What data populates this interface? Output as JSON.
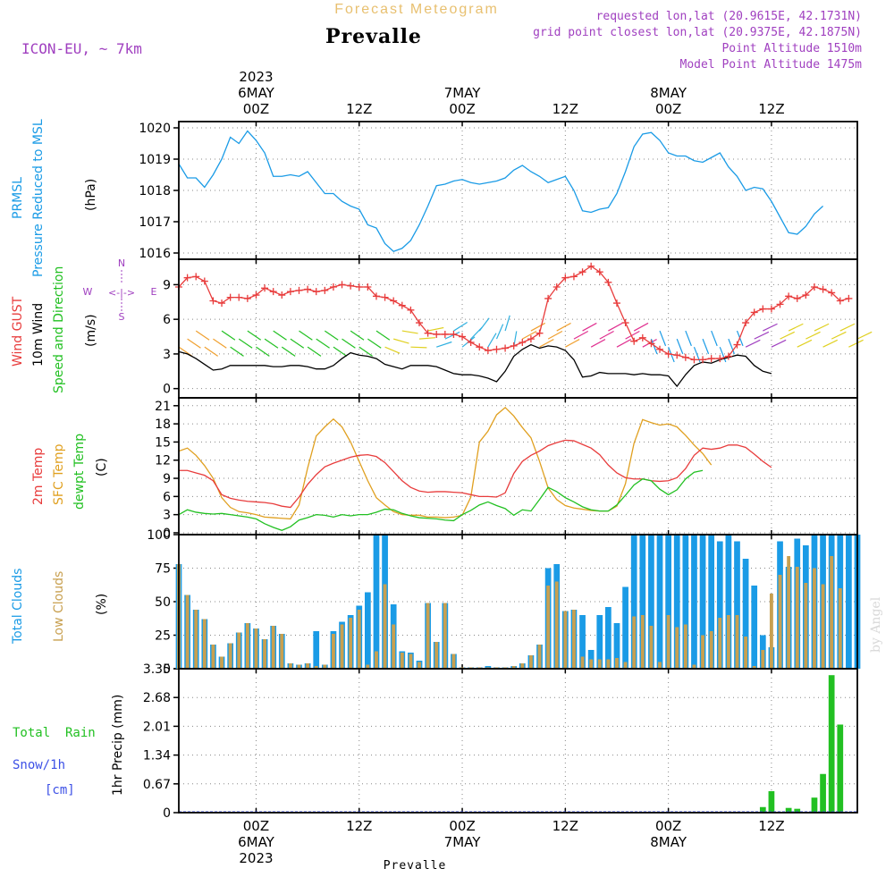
{
  "header": {
    "product": "Forecast Meteogram",
    "location": "Prevalle",
    "model": "ICON-EU, ~ 7km",
    "requested": "requested lon,lat (20.9615E, 42.1731N)",
    "grid_point": "grid point closest lon,lat (20.9375E, 42.1875N)",
    "point_altitude": "Point Altitude 1510m",
    "model_altitude": "Model Point Altitude 1475m"
  },
  "top_axis": {
    "labels": [
      {
        "lines": [
          "2023",
          "6MAY",
          "00Z"
        ],
        "hour": 24
      },
      {
        "lines": [
          "12Z"
        ],
        "hour": 36
      },
      {
        "lines": [
          "7MAY",
          "00Z"
        ],
        "hour": 48
      },
      {
        "lines": [
          "12Z"
        ],
        "hour": 60
      },
      {
        "lines": [
          "8MAY",
          "00Z"
        ],
        "hour": 72
      },
      {
        "lines": [
          "12Z"
        ],
        "hour": 84
      }
    ]
  },
  "bottom_axis": {
    "labels": [
      {
        "lines": [
          "00Z",
          "6MAY",
          "2023"
        ],
        "hour": 24
      },
      {
        "lines": [
          "12Z"
        ],
        "hour": 36
      },
      {
        "lines": [
          "00Z",
          "7MAY"
        ],
        "hour": 48
      },
      {
        "lines": [
          "12Z"
        ],
        "hour": 60
      },
      {
        "lines": [
          "00Z",
          "8MAY"
        ],
        "hour": 72
      },
      {
        "lines": [
          "12Z"
        ],
        "hour": 84
      }
    ],
    "footer": "Prevalle"
  },
  "watermark": "by Angel",
  "colors": {
    "pressure": "#1a9be6",
    "gust": "#e83c3c",
    "wind": "#000000",
    "temp": "#e83c3c",
    "sfc": "#e0a020",
    "dewpt": "#22c022",
    "total_clouds": "#1a9be6",
    "low_clouds": "#c8a050",
    "rain": "#22c022",
    "snow": "#3c50e6",
    "legend_wind_dir": "#a040c0",
    "header_meta": "#a040c0",
    "header_product": "#e8c070"
  },
  "panel_labels": {
    "pressure": {
      "var": "PRMSL",
      "desc": "Pressure Reduced to MSL",
      "unit": "(hPa)"
    },
    "wind": {
      "gust": "Wind GUST",
      "wind": "10m Wind",
      "dir": "Speed and Direction",
      "unit": "(m/s)",
      "compass": {
        "n": "N",
        "s": "S",
        "w": "W",
        "e": "E",
        "arrows": "<-|->"
      }
    },
    "temp": {
      "t2m": "2m Temp",
      "sfc": "SFC Temp",
      "dew": "dewpt Temp",
      "unit": "(C)"
    },
    "clouds": {
      "total": "Total Clouds",
      "low": "Low Clouds",
      "unit": "(%)"
    },
    "precip": {
      "rain": "Total  Rain",
      "snow": "Snow/1h",
      "snow_unit": "[cm]",
      "unit": "1hr Precip (mm)"
    }
  },
  "chart_data": [
    {
      "type": "line",
      "title": "PRMSL Pressure Reduced to MSL",
      "ylabel": "(hPa)",
      "x_hours_start": 15,
      "x_hours_step": 1,
      "xlim": [
        15,
        94
      ],
      "ylim": [
        1015.8,
        1020.2
      ],
      "yticks": [
        1016,
        1017,
        1018,
        1019,
        1020
      ],
      "series": [
        {
          "name": "PRMSL",
          "values": [
            1018.85,
            1018.4,
            1018.4,
            1018.1,
            1018.5,
            1019.0,
            1019.7,
            1019.5,
            1019.9,
            1019.6,
            1019.2,
            1018.45,
            1018.45,
            1018.5,
            1018.45,
            1018.6,
            1018.25,
            1017.9,
            1017.9,
            1017.65,
            1017.5,
            1017.4,
            1016.9,
            1016.8,
            1016.3,
            1016.05,
            1016.15,
            1016.4,
            1016.9,
            1017.5,
            1018.15,
            1018.2,
            1018.3,
            1018.35,
            1018.25,
            1018.2,
            1018.25,
            1018.3,
            1018.4,
            1018.65,
            1018.8,
            1018.6,
            1018.45,
            1018.25,
            1018.35,
            1018.45,
            1018.0,
            1017.35,
            1017.3,
            1017.4,
            1017.45,
            1017.9,
            1018.6,
            1019.4,
            1019.8,
            1019.85,
            1019.6,
            1019.2,
            1019.1,
            1019.1,
            1018.95,
            1018.9,
            1019.05,
            1019.2,
            1018.75,
            1018.45,
            1018.0,
            1018.1,
            1018.05,
            1017.65,
            1017.15,
            1016.65,
            1016.6,
            1016.85,
            1017.25,
            1017.5
          ]
        }
      ]
    },
    {
      "type": "line",
      "title": "Wind GUST / 10m Wind Speed and Direction",
      "ylabel": "(m/s)",
      "x_hours_start": 15,
      "x_hours_step": 1,
      "xlim": [
        15,
        94
      ],
      "ylim": [
        -0.8,
        11.2
      ],
      "yticks": [
        0,
        3,
        6,
        9
      ],
      "series": [
        {
          "name": "Wind GUST",
          "values": [
            8.8,
            9.6,
            9.7,
            9.3,
            7.6,
            7.4,
            7.9,
            7.9,
            7.8,
            8.1,
            8.7,
            8.4,
            8.1,
            8.4,
            8.5,
            8.6,
            8.4,
            8.5,
            8.8,
            9.0,
            8.9,
            8.8,
            8.8,
            8.0,
            7.9,
            7.6,
            7.2,
            6.8,
            5.7,
            4.8,
            4.7,
            4.7,
            4.7,
            4.5,
            4.0,
            3.6,
            3.3,
            3.4,
            3.5,
            3.7,
            4.0,
            4.3,
            4.8,
            7.8,
            8.8,
            9.6,
            9.7,
            10.1,
            10.6,
            10.1,
            9.2,
            7.4,
            5.7,
            4.1,
            4.4,
            3.9,
            3.4,
            3.0,
            2.9,
            2.7,
            2.5,
            2.5,
            2.6,
            2.6,
            2.8,
            3.8,
            5.7,
            6.6,
            6.9,
            6.9,
            7.3,
            8.0,
            7.8,
            8.1,
            8.8,
            8.6,
            8.3,
            7.6,
            7.8
          ]
        },
        {
          "name": "10m Wind",
          "values": [
            3.2,
            3.0,
            2.6,
            2.1,
            1.6,
            1.7,
            2.0,
            2.0,
            2.0,
            2.0,
            2.0,
            1.9,
            1.9,
            2.0,
            2.0,
            1.9,
            1.7,
            1.7,
            2.0,
            2.6,
            3.1,
            2.9,
            2.8,
            2.6,
            2.1,
            1.9,
            1.7,
            2.0,
            2.0,
            2.0,
            1.9,
            1.6,
            1.3,
            1.2,
            1.2,
            1.1,
            0.9,
            0.6,
            1.5,
            2.8,
            3.4,
            3.8,
            3.5,
            3.7,
            3.6,
            3.3,
            2.5,
            1.0,
            1.1,
            1.4,
            1.3,
            1.3,
            1.3,
            1.2,
            1.3,
            1.2,
            1.2,
            1.1,
            0.2,
            1.2,
            2.0,
            2.3,
            2.2,
            2.5,
            2.7,
            2.9,
            2.8,
            2.0,
            1.5,
            1.3
          ]
        }
      ],
      "wind_direction_arrows": {
        "count": 80,
        "note": "arrows along 3-6 m/s band, colored by speed"
      }
    },
    {
      "type": "line",
      "title": "2m Temp / SFC Temp / dewpt Temp",
      "ylabel": "(C)",
      "x_hours_start": 15,
      "x_hours_step": 1,
      "xlim": [
        15,
        94
      ],
      "ylim": [
        -0.3,
        22.3
      ],
      "yticks": [
        0,
        3,
        6,
        9,
        12,
        15,
        18,
        21
      ],
      "series": [
        {
          "name": "2m Temp",
          "values": [
            10.3,
            10.3,
            9.9,
            9.5,
            8.6,
            6.3,
            5.7,
            5.4,
            5.2,
            5.1,
            5.0,
            4.8,
            4.4,
            4.2,
            5.9,
            8.0,
            9.6,
            10.9,
            11.5,
            12.0,
            12.5,
            12.8,
            12.9,
            12.6,
            11.6,
            10.1,
            8.6,
            7.5,
            6.9,
            6.7,
            6.8,
            6.8,
            6.7,
            6.6,
            6.3,
            6.0,
            6.0,
            5.9,
            6.6,
            9.8,
            11.8,
            12.8,
            13.5,
            14.4,
            14.9,
            15.3,
            15.2,
            14.6,
            14.0,
            12.9,
            11.2,
            9.9,
            9.1,
            8.9,
            8.9,
            8.6,
            8.5,
            8.6,
            9.1,
            10.6,
            12.8,
            14.0,
            13.8,
            14.0,
            14.5,
            14.5,
            14.1,
            13.0,
            11.8,
            10.8
          ]
        },
        {
          "name": "SFC Temp",
          "values": [
            13.5,
            14.0,
            12.8,
            11.1,
            9.0,
            5.8,
            4.2,
            3.5,
            3.3,
            3.0,
            2.6,
            2.5,
            2.4,
            2.3,
            4.6,
            10.7,
            16.0,
            17.5,
            18.8,
            17.5,
            15.0,
            11.8,
            8.6,
            5.8,
            4.6,
            3.5,
            3.0,
            2.9,
            2.9,
            2.6,
            2.6,
            2.5,
            2.6,
            2.9,
            5.9,
            15.0,
            16.8,
            19.5,
            20.7,
            19.3,
            17.4,
            15.7,
            11.8,
            7.4,
            5.5,
            4.5,
            4.1,
            3.9,
            3.7,
            3.6,
            3.6,
            4.4,
            8.1,
            14.8,
            18.7,
            18.2,
            17.8,
            18.0,
            17.5,
            16.1,
            14.5,
            13.1,
            11.2
          ]
        },
        {
          "name": "dewpt Temp",
          "values": [
            3.0,
            3.8,
            3.4,
            3.2,
            3.1,
            3.2,
            3.0,
            2.8,
            2.6,
            2.3,
            1.5,
            0.9,
            0.4,
            1.0,
            2.1,
            2.5,
            3.0,
            2.9,
            2.6,
            3.0,
            2.8,
            3.0,
            3.0,
            3.4,
            3.9,
            3.8,
            3.2,
            2.8,
            2.5,
            2.4,
            2.3,
            2.1,
            2.0,
            3.0,
            3.7,
            4.6,
            5.1,
            4.5,
            4.0,
            2.9,
            3.8,
            3.6,
            5.5,
            7.5,
            6.8,
            5.8,
            5.1,
            4.3,
            3.8,
            3.6,
            3.6,
            4.6,
            6.2,
            7.9,
            8.9,
            8.6,
            7.2,
            6.3,
            7.1,
            8.9,
            10.0,
            10.3
          ]
        }
      ]
    },
    {
      "type": "bar",
      "title": "Total Clouds / Low Clouds",
      "ylabel": "(%)",
      "x_hours_start": 15,
      "x_hours_step": 1,
      "xlim": [
        15,
        94
      ],
      "ylim": [
        0,
        100
      ],
      "yticks": [
        0,
        25,
        50,
        75,
        100
      ],
      "series": [
        {
          "name": "Total Clouds",
          "values": [
            78,
            55,
            44,
            37,
            18,
            9,
            19,
            27,
            34,
            30,
            22,
            32,
            26,
            4,
            3,
            4,
            28,
            3,
            28,
            35,
            40,
            47,
            57,
            100,
            100,
            48,
            13,
            12,
            6,
            49,
            20,
            49,
            11,
            1,
            1,
            1,
            2,
            1,
            1,
            2,
            4,
            10,
            18,
            75,
            78,
            43,
            44,
            40,
            14,
            40,
            46,
            34,
            61,
            100,
            100,
            100,
            100,
            100,
            100,
            100,
            100,
            100,
            100,
            95,
            100,
            95,
            82,
            62,
            25,
            16,
            95,
            76,
            97,
            92,
            100,
            100,
            100,
            100,
            100,
            100
          ]
        },
        {
          "name": "Low Clouds",
          "values": [
            78,
            55,
            44,
            37,
            18,
            9,
            19,
            27,
            34,
            30,
            22,
            32,
            26,
            4,
            3,
            4,
            2,
            3,
            26,
            33,
            38,
            44,
            3,
            13,
            63,
            33,
            12,
            11,
            5,
            49,
            20,
            49,
            11,
            1,
            1,
            1,
            1,
            1,
            1,
            2,
            4,
            10,
            18,
            62,
            65,
            43,
            44,
            9,
            7,
            7,
            7,
            8,
            5,
            39,
            40,
            32,
            5,
            40,
            31,
            33,
            3,
            25,
            28,
            38,
            40,
            40,
            24,
            2,
            14,
            56,
            70,
            84,
            76,
            64,
            75,
            63,
            84,
            60
          ]
        }
      ]
    },
    {
      "type": "bar",
      "title": "Total Rain / Snow 1h",
      "ylabel": "1hr Precip (mm)",
      "x_hours_start": 15,
      "x_hours_step": 1,
      "xlim": [
        15,
        94
      ],
      "ylim": [
        0,
        3.35
      ],
      "yticks": [
        0,
        0.67,
        1.34,
        2.01,
        2.68,
        3.35
      ],
      "ytick_labels": [
        "0",
        "0.67",
        "1.34",
        "2.01",
        "2.68",
        "3.35"
      ],
      "series": [
        {
          "name": "Total Rain",
          "values": [
            0,
            0,
            0,
            0,
            0,
            0,
            0,
            0,
            0,
            0,
            0,
            0,
            0,
            0,
            0,
            0,
            0,
            0,
            0,
            0,
            0,
            0,
            0,
            0,
            0,
            0,
            0,
            0,
            0,
            0,
            0,
            0,
            0,
            0,
            0,
            0,
            0,
            0,
            0,
            0,
            0,
            0,
            0,
            0,
            0,
            0,
            0,
            0,
            0,
            0,
            0,
            0,
            0,
            0,
            0,
            0,
            0,
            0,
            0,
            0,
            0,
            0,
            0,
            0,
            0,
            0,
            0,
            0,
            0.13,
            0.5,
            0,
            0.11,
            0.09,
            0,
            0.35,
            0.9,
            3.2,
            2.05
          ]
        },
        {
          "name": "Snow/1h",
          "values": [
            0,
            0,
            0,
            0,
            0,
            0,
            0,
            0,
            0,
            0,
            0,
            0,
            0,
            0,
            0,
            0,
            0,
            0,
            0,
            0,
            0,
            0,
            0,
            0,
            0,
            0,
            0,
            0,
            0,
            0,
            0,
            0,
            0,
            0,
            0,
            0,
            0,
            0,
            0,
            0,
            0,
            0,
            0,
            0,
            0,
            0,
            0,
            0,
            0,
            0,
            0,
            0,
            0,
            0,
            0,
            0,
            0,
            0,
            0,
            0,
            0,
            0,
            0,
            0,
            0,
            0,
            0,
            0,
            0,
            0,
            0,
            0,
            0,
            0,
            0,
            0,
            0,
            0
          ]
        }
      ]
    }
  ]
}
